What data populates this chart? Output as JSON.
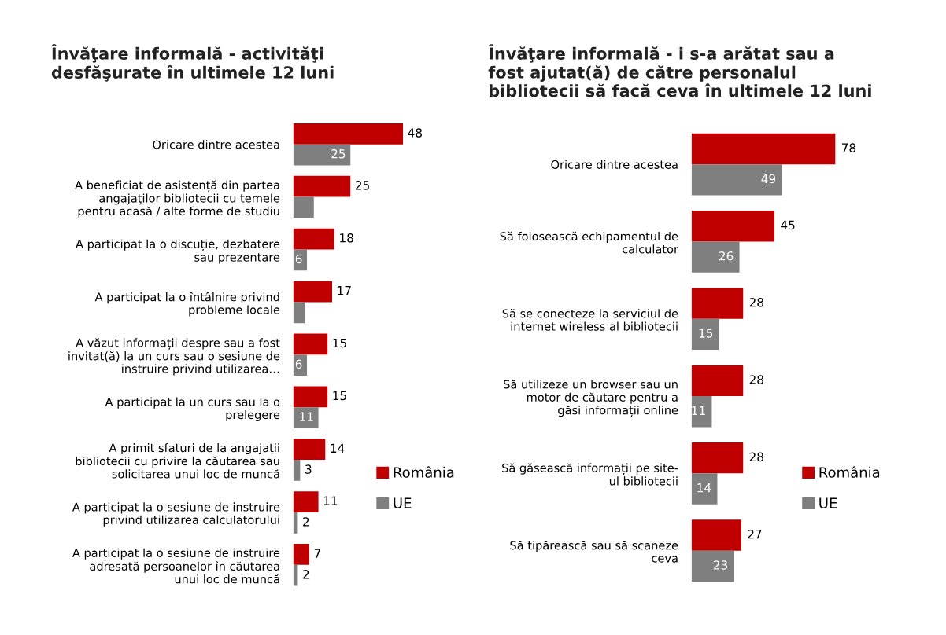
{
  "chart_data": [
    {
      "type": "bar",
      "orientation": "horizontal",
      "title": "Învăţare informală - activităţi\ndesfăşurate în ultimele 12 luni",
      "categories": [
        "Oricare dintre acestea",
        "A beneficiat de asistență din partea\nangajaţilor bibliotecii cu temele\npentru acasă / alte forme de studiu",
        "A participat la o discuție, dezbatere\nsau prezentare",
        "A participat la o întâlnire privind\nprobleme locale",
        "A văzut informații despre sau a fost\ninvitat(ă) la un curs sau o sesiune de\ninstruire privind utilizarea…",
        "A participat la un curs sau la o\nprelegere",
        "A primit sfaturi de la angajații\nbibliotecii cu privire la căutarea sau\nsolicitarea unui loc de muncă",
        "A participat la o sesiune de instruire\nprivind utilizarea calculatorului",
        "A participat la o sesiune de instruire\nadresată persoanelor în căutarea\nunui loc de muncă"
      ],
      "series": [
        {
          "name": "România",
          "color": "#c00000",
          "values": [
            48,
            25,
            18,
            17,
            15,
            15,
            14,
            11,
            7
          ],
          "value_labels": [
            "48",
            "25",
            "18",
            "17",
            "15",
            "15",
            "14",
            "11",
            "7"
          ]
        },
        {
          "name": "UE",
          "color": "#7f7f7f",
          "values": [
            25,
            9,
            6,
            5,
            6,
            11,
            3,
            2,
            2
          ],
          "value_labels": [
            "25",
            null,
            "6",
            null,
            "6",
            "11",
            "3",
            "2",
            "2"
          ]
        }
      ],
      "legend": "right"
    },
    {
      "type": "bar",
      "orientation": "horizontal",
      "title": "Învăţare informală - i s-a arătat sau a\nfost ajutat(ă) de către personalul\nbibliotecii să facă ceva în ultimele 12 luni",
      "categories": [
        "Oricare dintre acestea",
        "Să folosească echipamentul de\ncalculator",
        "Să se conecteze la serviciul de\ninternet wireless al bibliotecii",
        "Să utilizeze un browser sau un\nmotor de căutare pentru a\ngăsi informații online",
        "Să găsească informații pe site-\nul bibliotecii",
        "Să tipărească sau să scaneze\nceva"
      ],
      "series": [
        {
          "name": "România",
          "color": "#c00000",
          "values": [
            78,
            45,
            28,
            28,
            28,
            27
          ]
        },
        {
          "name": "UE",
          "color": "#7f7f7f",
          "values": [
            49,
            26,
            15,
            11,
            14,
            23
          ]
        }
      ],
      "data_labels": true,
      "legend": "right"
    }
  ]
}
